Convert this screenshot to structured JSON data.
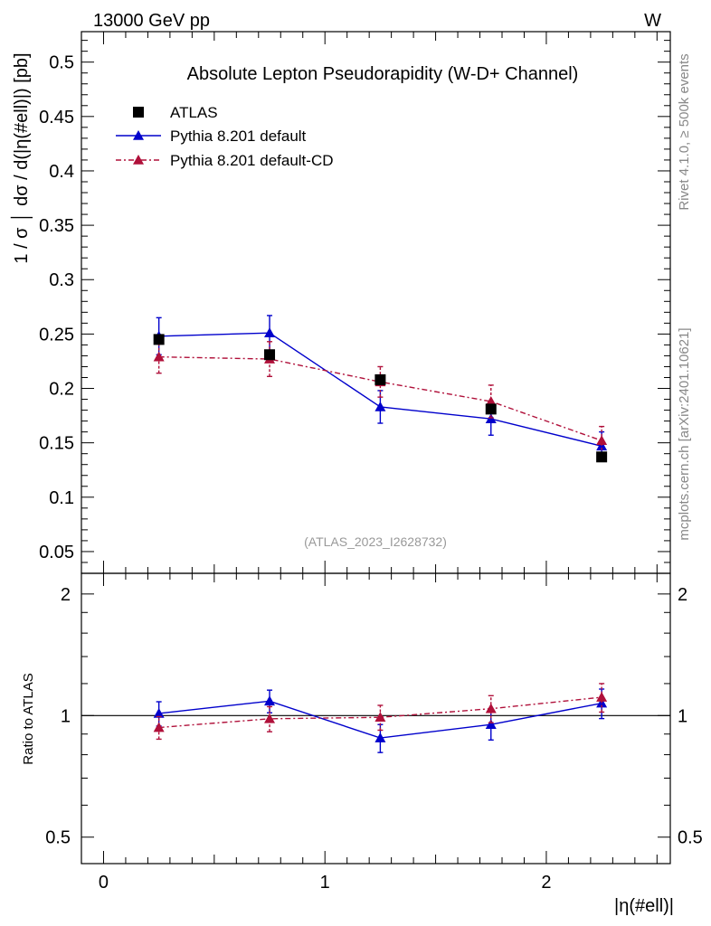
{
  "header": {
    "energy_label": "13000 GeV pp",
    "process_label": "W"
  },
  "side_labels": {
    "rivet": "Rivet 4.1.0, ≥ 500k events",
    "mcplots": "mcplots.cern.ch [arXiv:2401.10621]"
  },
  "colors": {
    "data": "#000000",
    "default": "#0000cc",
    "default_cd": "#b0103a",
    "watermark": "#999999",
    "side_text": "#888888"
  },
  "chart_data": [
    {
      "type": "line",
      "panel": "main",
      "title": "Absolute Lepton Pseudorapidity (W-D+ Channel)",
      "watermark": "(ATLAS_2023_I2628732)",
      "ylabel": "1 / σ │ dσ / d(|η(#ell)|) [pb]",
      "xlabel": "",
      "xlim": [
        -0.1,
        2.56
      ],
      "ylim": [
        0.03,
        0.528
      ],
      "yticks": [
        0.05,
        0.1,
        0.15,
        0.2,
        0.25,
        0.3,
        0.35,
        0.4,
        0.45,
        0.5
      ],
      "ytick_labels": [
        "0.05",
        "0.1",
        "0.15",
        "0.2",
        "0.25",
        "0.3",
        "0.35",
        "0.4",
        "0.45",
        "0.5"
      ],
      "legend_position": "top-left",
      "x": [
        0.25,
        0.75,
        1.25,
        1.75,
        2.25
      ],
      "series": [
        {
          "name": "ATLAS",
          "key": "data",
          "marker": "square",
          "values": [
            0.245,
            0.231,
            0.208,
            0.181,
            0.137
          ],
          "errors": [
            0.0,
            0.0,
            0.0,
            0.0,
            0.0
          ]
        },
        {
          "name": "Pythia 8.201 default",
          "key": "default",
          "marker": "triangle",
          "line": "solid",
          "values": [
            0.248,
            0.251,
            0.183,
            0.172,
            0.147
          ],
          "errors": [
            0.017,
            0.016,
            0.015,
            0.015,
            0.013
          ]
        },
        {
          "name": "Pythia 8.201 default-CD",
          "key": "default_cd",
          "marker": "triangle",
          "line": "dashdot",
          "values": [
            0.229,
            0.227,
            0.206,
            0.188,
            0.152
          ],
          "errors": [
            0.015,
            0.016,
            0.014,
            0.015,
            0.013
          ]
        }
      ]
    },
    {
      "type": "line",
      "panel": "ratio",
      "ylabel": "Ratio to ATLAS",
      "xlabel": "|η(#ell)|",
      "xlim": [
        -0.1,
        2.56
      ],
      "ylim": [
        0.43,
        2.25
      ],
      "yscale": "log",
      "yticks": [
        0.5,
        1,
        2
      ],
      "ytick_labels": [
        "0.5",
        "1",
        "2"
      ],
      "xticks": [
        0,
        1,
        2
      ],
      "xtick_labels": [
        "0",
        "1",
        "2"
      ],
      "reference": 1,
      "x": [
        0.25,
        0.75,
        1.25,
        1.75,
        2.25
      ],
      "series": [
        {
          "name": "Pythia 8.201 default",
          "key": "default",
          "marker": "triangle",
          "line": "solid",
          "values": [
            1.012,
            1.086,
            0.88,
            0.95,
            1.073
          ],
          "errors": [
            0.07,
            0.07,
            0.07,
            0.08,
            0.09
          ]
        },
        {
          "name": "Pythia 8.201 default-CD",
          "key": "default_cd",
          "marker": "triangle",
          "line": "dashdot",
          "values": [
            0.934,
            0.982,
            0.99,
            1.04,
            1.11
          ],
          "errors": [
            0.06,
            0.07,
            0.07,
            0.08,
            0.09
          ]
        }
      ]
    }
  ]
}
